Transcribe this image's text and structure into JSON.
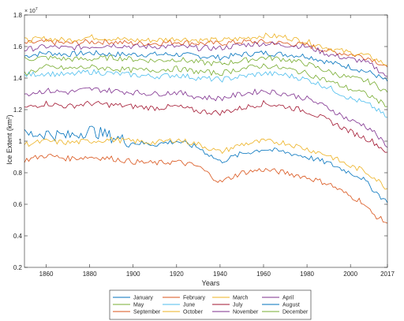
{
  "chart_data": {
    "type": "line",
    "title": "",
    "xlabel": "Years",
    "ylabel": "Ice Extent (km²)",
    "ylabel_base": "Ice Extent (km",
    "ylabel_sup": "2",
    "ylabel_tail": ")",
    "y_multiplier_base": "× 10",
    "y_multiplier_exp": "7",
    "xlim": [
      1850,
      2017
    ],
    "ylim": [
      0.2,
      1.8
    ],
    "xticks": [
      1860,
      1880,
      1900,
      1920,
      1940,
      1960,
      1980,
      2000,
      2017
    ],
    "xtick_labels": [
      "1860",
      "1880",
      "1900",
      "1920",
      "1940",
      "1960",
      "1980",
      "2000",
      "2017"
    ],
    "yticks": [
      0.2,
      0.4,
      0.6,
      0.8,
      1.0,
      1.2,
      1.4,
      1.6,
      1.8
    ],
    "ytick_labels": [
      "0.2",
      "0.4",
      "0.6",
      "0.8",
      "1",
      "1.2",
      "1.4",
      "1.6",
      "1.8"
    ],
    "grid": false,
    "legend_position": "bottom-outside",
    "x": [
      1850,
      1860,
      1870,
      1880,
      1890,
      1900,
      1910,
      1920,
      1930,
      1940,
      1950,
      1960,
      1970,
      1980,
      1990,
      2000,
      2005,
      2010,
      2017
    ],
    "series": [
      {
        "name": "January",
        "color": "#0072BD",
        "values": [
          1.54,
          1.56,
          1.55,
          1.56,
          1.55,
          1.55,
          1.55,
          1.55,
          1.54,
          1.53,
          1.55,
          1.56,
          1.55,
          1.54,
          1.5,
          1.47,
          1.45,
          1.43,
          1.38
        ]
      },
      {
        "name": "February",
        "color": "#D95319",
        "values": [
          1.62,
          1.63,
          1.62,
          1.63,
          1.63,
          1.62,
          1.62,
          1.63,
          1.62,
          1.62,
          1.63,
          1.63,
          1.62,
          1.61,
          1.57,
          1.55,
          1.54,
          1.52,
          1.47
        ]
      },
      {
        "name": "March",
        "color": "#EDB120",
        "values": [
          1.64,
          1.65,
          1.64,
          1.66,
          1.65,
          1.64,
          1.64,
          1.65,
          1.64,
          1.64,
          1.65,
          1.67,
          1.66,
          1.63,
          1.59,
          1.56,
          1.55,
          1.53,
          1.48
        ]
      },
      {
        "name": "April",
        "color": "#7E2F8E",
        "values": [
          1.58,
          1.6,
          1.59,
          1.6,
          1.61,
          1.6,
          1.6,
          1.6,
          1.59,
          1.59,
          1.61,
          1.62,
          1.61,
          1.6,
          1.55,
          1.52,
          1.51,
          1.48,
          1.41
        ]
      },
      {
        "name": "May",
        "color": "#77AC30",
        "values": [
          1.52,
          1.53,
          1.52,
          1.52,
          1.53,
          1.52,
          1.51,
          1.52,
          1.5,
          1.49,
          1.51,
          1.53,
          1.52,
          1.49,
          1.44,
          1.4,
          1.39,
          1.37,
          1.31
        ]
      },
      {
        "name": "June",
        "color": "#4DBEEE",
        "values": [
          1.42,
          1.43,
          1.42,
          1.44,
          1.43,
          1.42,
          1.41,
          1.42,
          1.4,
          1.39,
          1.41,
          1.43,
          1.42,
          1.39,
          1.34,
          1.27,
          1.25,
          1.22,
          1.15
        ]
      },
      {
        "name": "July",
        "color": "#A2142F",
        "values": [
          1.21,
          1.24,
          1.22,
          1.24,
          1.23,
          1.22,
          1.21,
          1.22,
          1.19,
          1.18,
          1.21,
          1.24,
          1.22,
          1.19,
          1.13,
          1.06,
          1.03,
          1.0,
          0.93
        ]
      },
      {
        "name": "August",
        "color": "#0072BD",
        "values": [
          1.04,
          1.05,
          1.03,
          1.07,
          1.03,
          0.99,
          0.98,
          1.0,
          0.96,
          0.87,
          0.92,
          0.95,
          0.93,
          0.9,
          0.86,
          0.8,
          0.77,
          0.7,
          0.61
        ]
      },
      {
        "name": "September",
        "color": "#D95319",
        "values": [
          0.88,
          0.91,
          0.89,
          0.9,
          0.89,
          0.87,
          0.86,
          0.87,
          0.84,
          0.74,
          0.8,
          0.82,
          0.8,
          0.77,
          0.73,
          0.65,
          0.62,
          0.54,
          0.48
        ]
      },
      {
        "name": "October",
        "color": "#EDB120",
        "values": [
          0.98,
          1.0,
          0.99,
          1.0,
          1.01,
          1.0,
          0.99,
          1.01,
          0.98,
          0.93,
          0.98,
          1.0,
          0.99,
          0.95,
          0.91,
          0.84,
          0.82,
          0.78,
          0.7
        ]
      },
      {
        "name": "November",
        "color": "#7E2F8E",
        "values": [
          1.3,
          1.32,
          1.31,
          1.33,
          1.32,
          1.31,
          1.3,
          1.31,
          1.28,
          1.27,
          1.3,
          1.32,
          1.3,
          1.27,
          1.21,
          1.13,
          1.11,
          1.07,
          0.96
        ]
      },
      {
        "name": "December",
        "color": "#77AC30",
        "values": [
          1.43,
          1.47,
          1.46,
          1.47,
          1.46,
          1.45,
          1.45,
          1.46,
          1.44,
          1.43,
          1.46,
          1.48,
          1.46,
          1.43,
          1.38,
          1.33,
          1.31,
          1.28,
          1.22
        ]
      }
    ]
  }
}
